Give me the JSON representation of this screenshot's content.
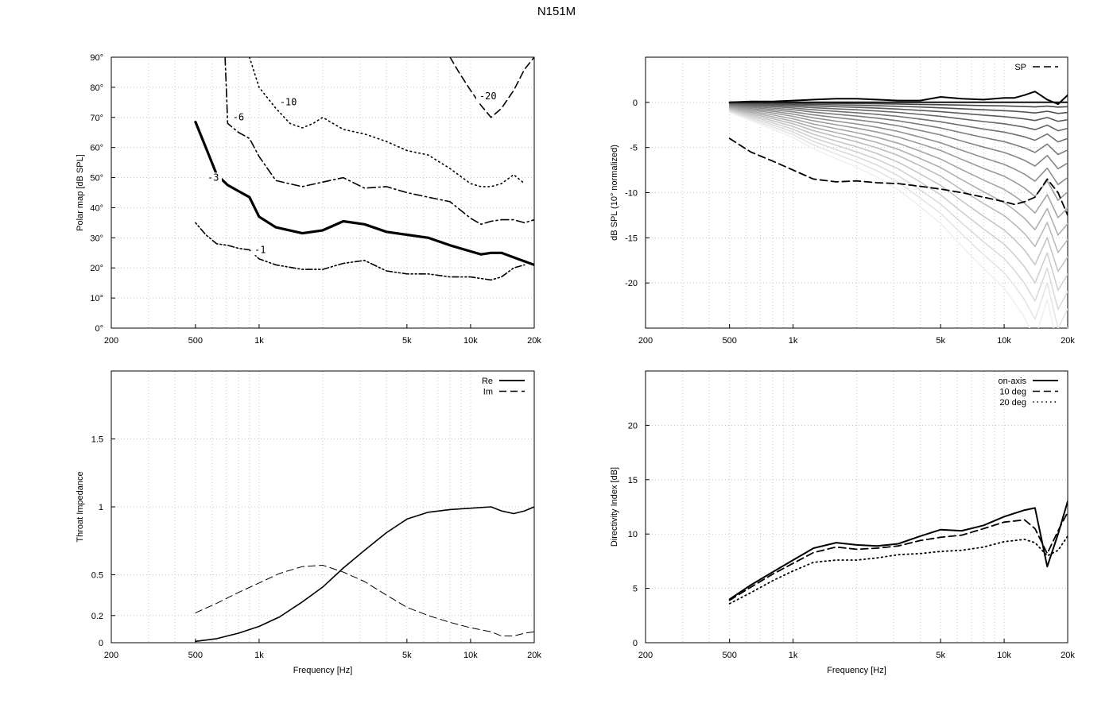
{
  "title": "N151M",
  "colors": {
    "frame": "#000000",
    "grid": "#c8c8c8",
    "background": "#ffffff"
  },
  "chart_data": [
    {
      "id": "polar",
      "type": "line",
      "subtype": "contour",
      "title": "",
      "xlabel": "",
      "ylabel": "Polar map [dB SPL]",
      "xscale": "log",
      "xlim": [
        200,
        20000
      ],
      "ylim": [
        0,
        90
      ],
      "grid": true,
      "xticks": [
        {
          "v": 200,
          "label": "200"
        },
        {
          "v": 500,
          "label": "500"
        },
        {
          "v": 1000,
          "label": "1k"
        },
        {
          "v": 5000,
          "label": "5k"
        },
        {
          "v": 10000,
          "label": "10k"
        },
        {
          "v": 20000,
          "label": "20k"
        }
      ],
      "yticks": [
        {
          "v": 0,
          "label": "0°"
        },
        {
          "v": 10,
          "label": "10°"
        },
        {
          "v": 20,
          "label": "20°"
        },
        {
          "v": 30,
          "label": "30°"
        },
        {
          "v": 40,
          "label": "40°"
        },
        {
          "v": 50,
          "label": "50°"
        },
        {
          "v": 60,
          "label": "60°"
        },
        {
          "v": 70,
          "label": "70°"
        },
        {
          "v": 80,
          "label": "80°"
        },
        {
          "v": 90,
          "label": "90°"
        }
      ],
      "series": [
        {
          "name": "-1",
          "style": "dotdotdash",
          "x": [
            500,
            560,
            630,
            710,
            800,
            900,
            1000,
            1200,
            1600,
            2000,
            2500,
            3150,
            4000,
            5000,
            6300,
            8000,
            10000,
            12500,
            14000,
            16000,
            18000
          ],
          "y": [
            35,
            31,
            28,
            27.5,
            26.5,
            26,
            23,
            21,
            19.5,
            19.5,
            21.5,
            22.5,
            19,
            18,
            18,
            17,
            17,
            16,
            17,
            20,
            21
          ]
        },
        {
          "name": "-3",
          "style": "solid-thick",
          "x": [
            500,
            560,
            630,
            710,
            800,
            900,
            1000,
            1200,
            1600,
            2000,
            2500,
            3150,
            4000,
            5000,
            6300,
            8000,
            10000,
            11200,
            12500,
            14000,
            16000,
            20000
          ],
          "y": [
            68.5,
            60,
            51,
            47.5,
            45.5,
            43.5,
            37,
            33.5,
            31.5,
            32.5,
            35.5,
            34.5,
            32,
            31,
            30,
            27.5,
            25.5,
            24.5,
            25,
            25,
            23.5,
            21
          ]
        },
        {
          "name": "-6",
          "style": "dashdot",
          "x": [
            690,
            710,
            800,
            900,
            1000,
            1200,
            1600,
            2000,
            2500,
            3150,
            4000,
            5000,
            6300,
            8000,
            10000,
            11200,
            12500,
            14000,
            16000,
            18000,
            20000
          ],
          "y": [
            90,
            68,
            65,
            63,
            57,
            49,
            47,
            48.5,
            50,
            46.5,
            47,
            45,
            43.5,
            42,
            36.5,
            34.5,
            35.5,
            36,
            36,
            35,
            36
          ]
        },
        {
          "name": "-10",
          "style": "dotted",
          "x": [
            900,
            1000,
            1200,
            1400,
            1600,
            1800,
            2000,
            2500,
            3150,
            4000,
            5000,
            6300,
            8000,
            10000,
            11200,
            12500,
            14000,
            16000,
            18000
          ],
          "y": [
            90,
            80,
            73,
            68,
            66.5,
            68,
            70,
            66,
            64.5,
            62,
            59,
            57.5,
            53,
            48,
            47,
            47,
            48,
            51,
            48
          ]
        },
        {
          "name": "-20",
          "style": "dashed",
          "x": [
            8000,
            8800,
            10000,
            11200,
            12500,
            14000,
            16000,
            18000,
            20000
          ],
          "y": [
            90,
            85,
            79,
            74,
            70,
            73,
            79,
            86,
            90
          ]
        }
      ],
      "contour_labels": [
        {
          "text": "-1",
          "x": 950,
          "y": 25
        },
        {
          "text": "-3",
          "x": 570,
          "y": 49
        },
        {
          "text": "-6",
          "x": 750,
          "y": 69
        },
        {
          "text": "-10",
          "x": 1250,
          "y": 74
        },
        {
          "text": "-20",
          "x": 11000,
          "y": 76
        }
      ]
    },
    {
      "id": "normalized",
      "type": "line",
      "title": "",
      "xlabel": "",
      "ylabel": "dB SPL (10° normalized)",
      "xscale": "log",
      "xlim": [
        200,
        20000
      ],
      "ylim": [
        -25,
        5
      ],
      "grid": true,
      "xticks": [
        {
          "v": 200,
          "label": "200"
        },
        {
          "v": 500,
          "label": "500"
        },
        {
          "v": 1000,
          "label": "1k"
        },
        {
          "v": 5000,
          "label": "5k"
        },
        {
          "v": 10000,
          "label": "10k"
        },
        {
          "v": 20000,
          "label": "20k"
        }
      ],
      "yticks": [
        {
          "v": 0,
          "label": "0"
        },
        {
          "v": -5,
          "label": "-5"
        },
        {
          "v": -10,
          "label": "-10"
        },
        {
          "v": -15,
          "label": "-15"
        },
        {
          "v": -20,
          "label": "-20"
        }
      ],
      "legend": {
        "position": "top-right",
        "entries": [
          {
            "name": "SP",
            "style": "dashed"
          }
        ]
      },
      "x": [
        500,
        630,
        800,
        1000,
        1250,
        1600,
        2000,
        2500,
        3150,
        4000,
        5000,
        6300,
        8000,
        10000,
        11200,
        12500,
        14000,
        16000,
        18000,
        20000
      ],
      "series": [
        {
          "name": "0°",
          "style": "solid",
          "color": "#000000",
          "values": [
            0,
            0.1,
            0.1,
            0.2,
            0.3,
            0.4,
            0.4,
            0.3,
            0.2,
            0.2,
            0.6,
            0.4,
            0.3,
            0.5,
            0.5,
            0.8,
            1.2,
            0.3,
            -0.2,
            0.8
          ]
        },
        {
          "name": "10°",
          "style": "solid",
          "color": "#111111",
          "values": [
            0,
            0,
            0,
            0,
            0,
            0,
            0,
            0,
            0,
            0,
            0,
            0,
            0,
            0,
            0,
            0,
            0,
            0,
            0,
            0
          ]
        },
        {
          "name": "SP",
          "style": "dashed",
          "color": "#000000",
          "values": [
            -4,
            -5.5,
            -6.5,
            -7.5,
            -8.5,
            -8.8,
            -8.7,
            -8.9,
            -9,
            -9.3,
            -9.6,
            -10,
            -10.5,
            -11,
            -11.3,
            -11,
            -10.5,
            -8.5,
            -10,
            -12.5
          ]
        }
      ],
      "polar_fan": {
        "angles_deg": [
          20,
          30,
          40,
          50,
          60,
          70,
          80,
          90,
          100,
          110,
          120,
          130,
          140,
          150,
          160,
          170,
          180
        ],
        "factor": [
          0.03,
          0.07,
          0.12,
          0.18,
          0.25,
          0.33,
          0.42,
          0.52,
          0.62,
          0.73,
          0.84,
          0.95,
          1.07,
          1.19,
          1.31,
          1.43,
          1.56
        ],
        "base_shape": [
          -0.7,
          -1.3,
          -1.9,
          -2.5,
          -3.3,
          -4.0,
          -4.6,
          -5.3,
          -6.2,
          -7.4,
          -8.6,
          -10.2,
          -11.8,
          -13.2,
          -14.2,
          -15.3,
          -16.8,
          -14.0,
          -17.5,
          -16.0
        ]
      }
    },
    {
      "id": "impedance",
      "type": "line",
      "title": "",
      "xlabel": "Frequency [Hz]",
      "ylabel": "Throat Impedance",
      "xscale": "log",
      "xlim": [
        200,
        20000
      ],
      "ylim": [
        0,
        2
      ],
      "grid": true,
      "xticks": [
        {
          "v": 200,
          "label": "200"
        },
        {
          "v": 500,
          "label": "500"
        },
        {
          "v": 1000,
          "label": "1k"
        },
        {
          "v": 5000,
          "label": "5k"
        },
        {
          "v": 10000,
          "label": "10k"
        },
        {
          "v": 20000,
          "label": "20k"
        }
      ],
      "yticks": [
        {
          "v": 0,
          "label": "0"
        },
        {
          "v": 0.2,
          "label": "0.2"
        },
        {
          "v": 0.5,
          "label": "0.5"
        },
        {
          "v": 1,
          "label": "1"
        },
        {
          "v": 1.5,
          "label": "1.5"
        }
      ],
      "legend": {
        "position": "top-right",
        "entries": [
          {
            "name": "Re",
            "style": "solid"
          },
          {
            "name": "Im",
            "style": "dashed"
          }
        ]
      },
      "x": [
        500,
        630,
        800,
        1000,
        1250,
        1600,
        2000,
        2500,
        3150,
        4000,
        5000,
        6300,
        8000,
        10000,
        12500,
        14000,
        16000,
        18000,
        20000
      ],
      "series": [
        {
          "name": "Re",
          "style": "solid",
          "values": [
            0.01,
            0.03,
            0.07,
            0.12,
            0.19,
            0.3,
            0.41,
            0.55,
            0.68,
            0.81,
            0.91,
            0.96,
            0.98,
            0.99,
            1.0,
            0.97,
            0.95,
            0.97,
            1.0
          ]
        },
        {
          "name": "Im",
          "style": "dashed",
          "values": [
            0.22,
            0.29,
            0.37,
            0.44,
            0.51,
            0.56,
            0.57,
            0.52,
            0.45,
            0.35,
            0.26,
            0.2,
            0.15,
            0.11,
            0.08,
            0.05,
            0.05,
            0.07,
            0.08
          ]
        }
      ]
    },
    {
      "id": "directivity",
      "type": "line",
      "title": "",
      "xlabel": "Frequency [Hz]",
      "ylabel": "Directivity Index [dB]",
      "xscale": "log",
      "xlim": [
        200,
        20000
      ],
      "ylim": [
        0,
        25
      ],
      "grid": true,
      "xticks": [
        {
          "v": 200,
          "label": "200"
        },
        {
          "v": 500,
          "label": "500"
        },
        {
          "v": 1000,
          "label": "1k"
        },
        {
          "v": 5000,
          "label": "5k"
        },
        {
          "v": 10000,
          "label": "10k"
        },
        {
          "v": 20000,
          "label": "20k"
        }
      ],
      "yticks": [
        {
          "v": 0,
          "label": "0"
        },
        {
          "v": 5,
          "label": "5"
        },
        {
          "v": 10,
          "label": "10"
        },
        {
          "v": 15,
          "label": "15"
        },
        {
          "v": 20,
          "label": "20"
        }
      ],
      "legend": {
        "position": "top-right",
        "entries": [
          {
            "name": "on-axis",
            "style": "solid"
          },
          {
            "name": "10 deg",
            "style": "dashed"
          },
          {
            "name": "20 deg",
            "style": "dotted"
          }
        ]
      },
      "x": [
        500,
        630,
        800,
        1000,
        1250,
        1600,
        2000,
        2500,
        3150,
        4000,
        5000,
        6300,
        8000,
        10000,
        12500,
        14000,
        16000,
        18000,
        20000
      ],
      "series": [
        {
          "name": "on-axis",
          "style": "solid",
          "values": [
            4,
            5.3,
            6.5,
            7.6,
            8.7,
            9.2,
            9.0,
            8.9,
            9.1,
            9.8,
            10.4,
            10.3,
            10.8,
            11.6,
            12.2,
            12.4,
            7.0,
            10.0,
            13.0
          ]
        },
        {
          "name": "10 deg",
          "style": "dashed",
          "values": [
            3.9,
            5.1,
            6.3,
            7.3,
            8.3,
            8.8,
            8.6,
            8.7,
            8.9,
            9.4,
            9.7,
            9.9,
            10.5,
            11.1,
            11.3,
            10.5,
            8.2,
            10.3,
            12.0
          ]
        },
        {
          "name": "20 deg",
          "style": "dotted",
          "values": [
            3.6,
            4.6,
            5.7,
            6.6,
            7.4,
            7.6,
            7.6,
            7.8,
            8.1,
            8.2,
            8.4,
            8.5,
            8.8,
            9.3,
            9.5,
            9.2,
            8.0,
            8.5,
            9.8
          ]
        }
      ]
    }
  ]
}
